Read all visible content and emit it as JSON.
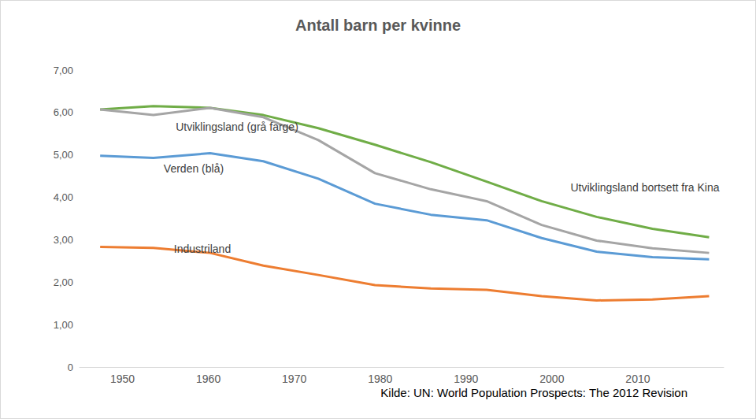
{
  "chart_data": {
    "type": "line",
    "title": "Antall barn per kvinne",
    "source": "Kilde: UN: World Population Prospects: The 2012 Revision",
    "x": [
      1947.4,
      1953.6,
      1960.2,
      1966.4,
      1972.8,
      1979.4,
      1985.9,
      1992.4,
      1998.8,
      2005.2,
      2011.7,
      2018.3
    ],
    "series": [
      {
        "name": "Utviklingsland bortsett fra Kina",
        "color": "#70ad47",
        "values": [
          6.07,
          6.15,
          6.11,
          5.94,
          5.63,
          5.24,
          4.83,
          4.37,
          3.91,
          3.54,
          3.26,
          3.06
        ]
      },
      {
        "name": "Utviklingsland (grå farge)",
        "color": "#a5a5a5",
        "values": [
          6.07,
          5.94,
          6.11,
          5.89,
          5.35,
          4.57,
          4.19,
          3.91,
          3.35,
          2.98,
          2.8,
          2.69
        ]
      },
      {
        "name": "Verden (blå)",
        "color": "#5b9bd5",
        "values": [
          4.98,
          4.93,
          5.04,
          4.85,
          4.44,
          3.85,
          3.59,
          3.46,
          3.04,
          2.72,
          2.59,
          2.54
        ]
      },
      {
        "name": "Industriland",
        "color": "#ed7d31",
        "values": [
          2.83,
          2.81,
          2.69,
          2.39,
          2.17,
          1.93,
          1.85,
          1.82,
          1.67,
          1.57,
          1.59,
          1.67
        ]
      }
    ],
    "xlim": [
      1945,
      2020
    ],
    "xticks": [
      1950,
      1960,
      1970,
      1980,
      1990,
      2000,
      2010
    ],
    "ylim": [
      0,
      7
    ],
    "yticks": [
      0,
      {
        "value": 1,
        "label": "1,00"
      },
      {
        "value": 2,
        "label": "2,00"
      },
      {
        "value": 3,
        "label": "3,00"
      },
      {
        "value": 4,
        "label": "4,00"
      },
      {
        "value": 5,
        "label": "5,00"
      },
      {
        "value": 6,
        "label": "6,00"
      },
      {
        "value": 7,
        "label": "7,00"
      }
    ],
    "grid": false
  }
}
